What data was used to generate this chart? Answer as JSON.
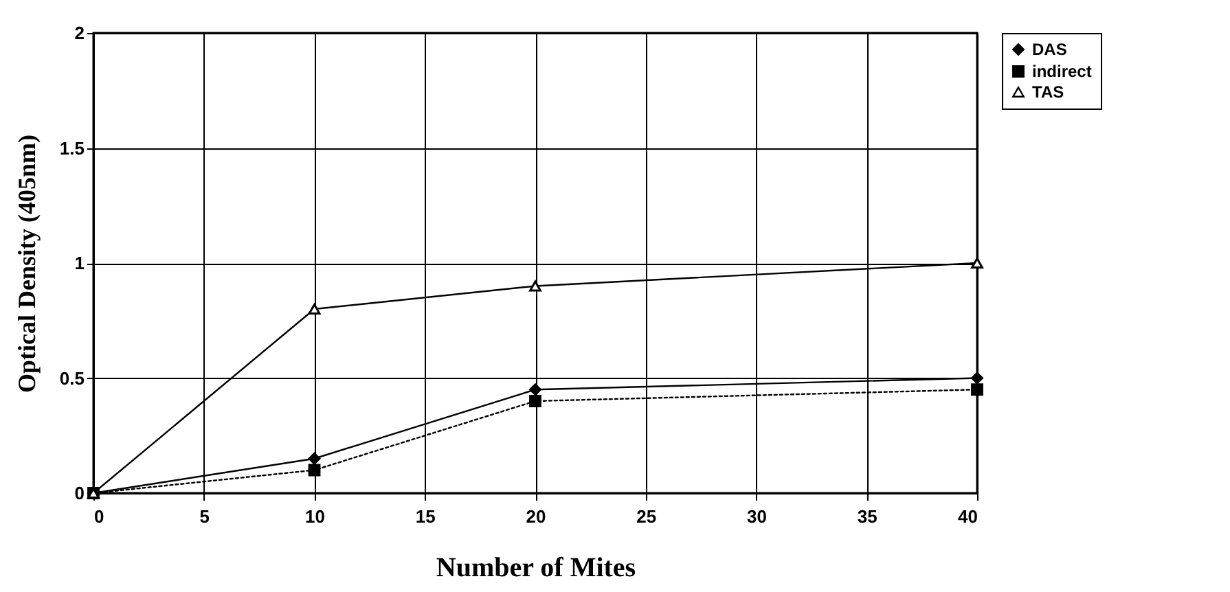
{
  "chart_data": {
    "type": "line",
    "xlabel": "Number of Mites",
    "ylabel": "Optical Density (405nm)",
    "x": [
      0,
      10,
      20,
      40
    ],
    "series": [
      {
        "name": "DAS",
        "color": "#000000",
        "values": [
          0,
          0.15,
          0.45,
          0.5
        ],
        "marker": "diamond",
        "line_style": "solid"
      },
      {
        "name": "indirect",
        "color": "#000000",
        "values": [
          0,
          0.1,
          0.4,
          0.45
        ],
        "marker": "square",
        "line_style": "dotted"
      },
      {
        "name": "TAS",
        "color": "#000000",
        "values": [
          0,
          0.8,
          0.9,
          1.0
        ],
        "marker": "triangle",
        "line_style": "solid"
      }
    ],
    "xlim": [
      0,
      40
    ],
    "xticks": [
      0,
      5,
      10,
      15,
      20,
      25,
      30,
      35,
      40
    ],
    "ylim": [
      0,
      2
    ],
    "yticks": [
      {
        "value": 0,
        "label": "0"
      },
      0.5,
      {
        "value": 1,
        "label": "1"
      },
      1.5,
      {
        "value": 2,
        "label": "2"
      }
    ],
    "grid": true,
    "legend": "top right"
  }
}
